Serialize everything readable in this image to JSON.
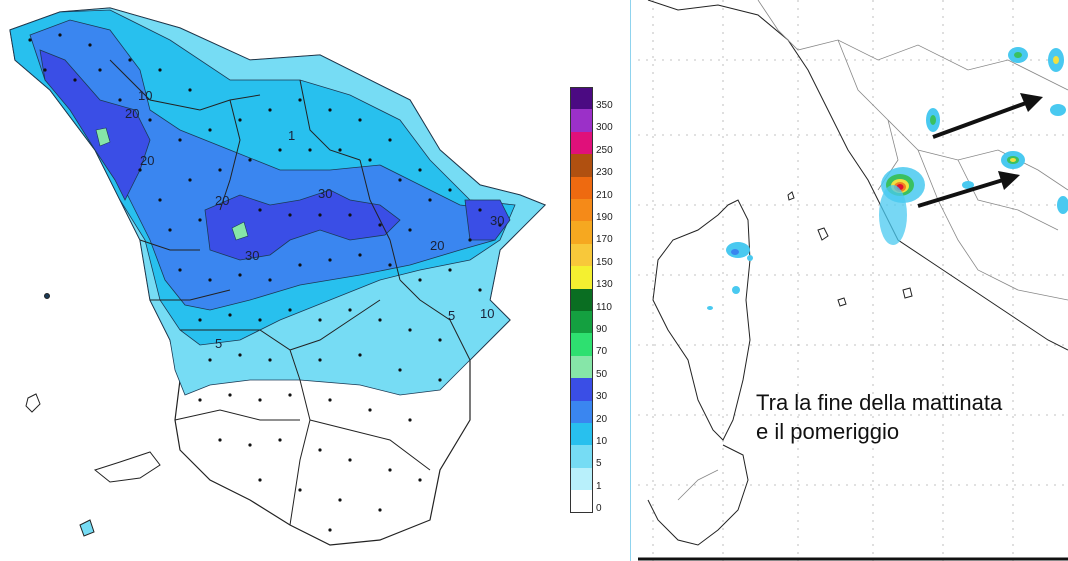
{
  "left_map": {
    "contour_labels": [
      "10",
      "20",
      "20",
      "20",
      "30",
      "30",
      "20",
      "30",
      "5",
      "5",
      "10",
      "1"
    ],
    "legend": [
      {
        "label": "350",
        "color": "#4b0a82"
      },
      {
        "label": "300",
        "color": "#9b30c8"
      },
      {
        "label": "250",
        "color": "#e0107a"
      },
      {
        "label": "230",
        "color": "#b05010"
      },
      {
        "label": "210",
        "color": "#ee6a10"
      },
      {
        "label": "190",
        "color": "#f58a18"
      },
      {
        "label": "170",
        "color": "#f6a820"
      },
      {
        "label": "150",
        "color": "#f8c83a"
      },
      {
        "label": "130",
        "color": "#f4f030"
      },
      {
        "label": "110",
        "color": "#0a6e22"
      },
      {
        "label": "90",
        "color": "#14a040"
      },
      {
        "label": "70",
        "color": "#2ee070"
      },
      {
        "label": "50",
        "color": "#86e6a8"
      },
      {
        "label": "30",
        "color": "#3a4ee6"
      },
      {
        "label": "20",
        "color": "#3a86f0"
      },
      {
        "label": "10",
        "color": "#28c0ee"
      },
      {
        "label": "5",
        "color": "#76dcf4"
      },
      {
        "label": "1",
        "color": "#b8f0fb"
      },
      {
        "label": "0",
        "color": "#ffffff"
      }
    ]
  },
  "right_map": {
    "caption_line1": "Tra la fine della mattinata",
    "caption_line2": "e il pomeriggio"
  }
}
